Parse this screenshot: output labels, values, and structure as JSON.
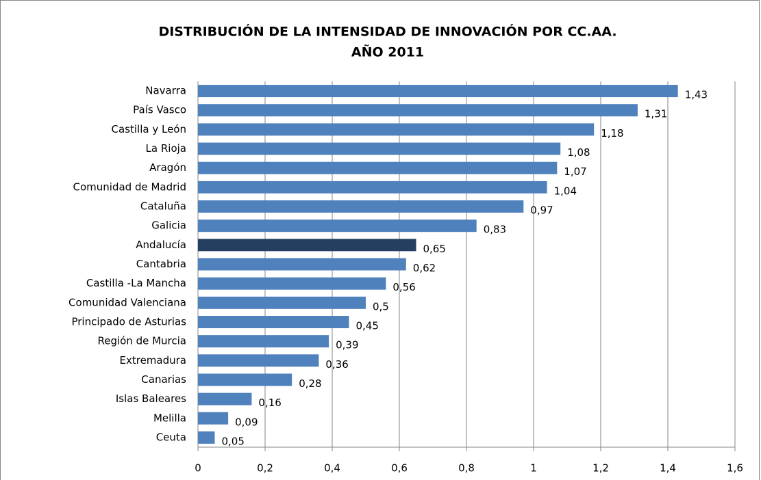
{
  "chart_data": {
    "type": "bar",
    "orientation": "horizontal",
    "title": [
      "DISTRIBUCIÓN DE LA INTENSIDAD DE INNOVACIÓN POR CC.AA.",
      "AÑO 2011"
    ],
    "categories": [
      "Navarra",
      "País Vasco",
      "Castilla y León",
      "La Rioja",
      "Aragón",
      "Comunidad de Madrid",
      "Cataluña",
      "Galicia",
      "Andalucía",
      "Cantabria",
      "Castilla -La Mancha",
      "Comunidad Valenciana",
      "Principado de Asturias",
      "Región de Murcia",
      "Extremadura",
      "Canarias",
      "Islas Baleares",
      "Melilla",
      "Ceuta"
    ],
    "values": [
      1.43,
      1.31,
      1.18,
      1.08,
      1.07,
      1.04,
      0.97,
      0.83,
      0.65,
      0.62,
      0.56,
      0.5,
      0.45,
      0.39,
      0.36,
      0.28,
      0.16,
      0.09,
      0.05
    ],
    "value_labels": [
      "1,43",
      "1,31",
      "1,18",
      "1,08",
      "1,07",
      "1,04",
      "0,97",
      "0,83",
      "0,65",
      "0,62",
      "0,56",
      "0,5",
      "0,45",
      "0,39",
      "0,36",
      "0,28",
      "0,16",
      "0,09",
      "0,05"
    ],
    "colors": [
      "#4f81bd",
      "#4f81bd",
      "#4f81bd",
      "#4f81bd",
      "#4f81bd",
      "#4f81bd",
      "#4f81bd",
      "#4f81bd",
      "#243f60",
      "#4f81bd",
      "#4f81bd",
      "#4f81bd",
      "#4f81bd",
      "#4f81bd",
      "#4f81bd",
      "#4f81bd",
      "#4f81bd",
      "#4f81bd",
      "#4f81bd"
    ],
    "xlim": [
      0,
      1.6
    ],
    "xticks": [
      0,
      {
        "value": 0.2,
        "label": "0,2"
      },
      {
        "value": 0.4,
        "label": "0,4"
      },
      {
        "value": 0.6,
        "label": "0,6"
      },
      {
        "value": 0.8,
        "label": "0,8"
      },
      1,
      {
        "value": 1.2,
        "label": "1,2"
      },
      {
        "value": 1.4,
        "label": "1,4"
      },
      {
        "value": 1.6,
        "label": "1,6"
      }
    ],
    "grid": true
  }
}
